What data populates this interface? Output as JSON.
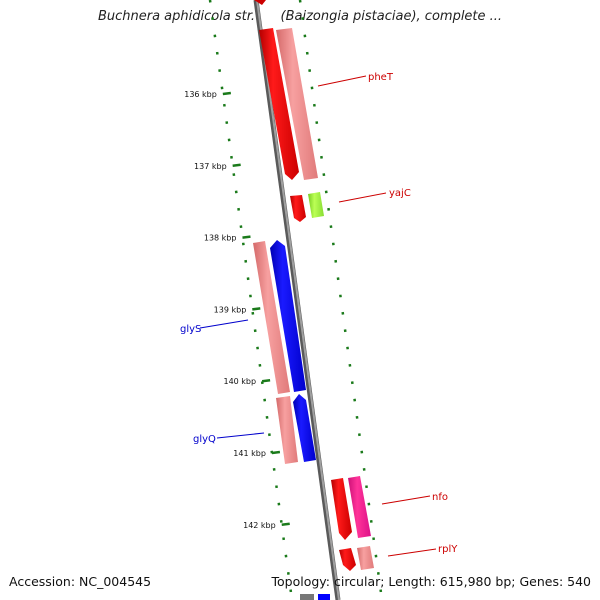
{
  "title": "Buchnera aphidicola str. Bp (Baizongia pistaciae), complete ...",
  "accession": "Accession: NC_004545",
  "summary": "Topology: circular; Length: 615,980 bp; Genes: 540",
  "scale_ticks": [
    {
      "label": "136 kbp",
      "kbp": 136
    },
    {
      "label": "137 kbp",
      "kbp": 137
    },
    {
      "label": "138 kbp",
      "kbp": 138
    },
    {
      "label": "139 kbp",
      "kbp": 139
    },
    {
      "label": "140 kbp",
      "kbp": 140
    },
    {
      "label": "141 kbp",
      "kbp": 141
    },
    {
      "label": "142 kbp",
      "kbp": 142
    }
  ],
  "genes": [
    {
      "name": "pheT",
      "strand": "reverse",
      "color": "#cc0000"
    },
    {
      "name": "yajC",
      "strand": "reverse",
      "color": "#cc0000"
    },
    {
      "name": "glyS",
      "strand": "forward",
      "color": "#0000cc"
    },
    {
      "name": "glyQ",
      "strand": "forward",
      "color": "#0000cc"
    },
    {
      "name": "nfo",
      "strand": "reverse",
      "color": "#cc0000"
    },
    {
      "name": "rplY",
      "strand": "reverse",
      "color": "#cc0000"
    }
  ],
  "colors": {
    "forward_cds": "#0000ff",
    "reverse_cds": "#ff0000",
    "rna_feature": "#f08080",
    "green_feature": "#99ee33",
    "magenta_feature": "#ee1199",
    "backbone": "#888888",
    "tick": "#1a7a1a"
  }
}
